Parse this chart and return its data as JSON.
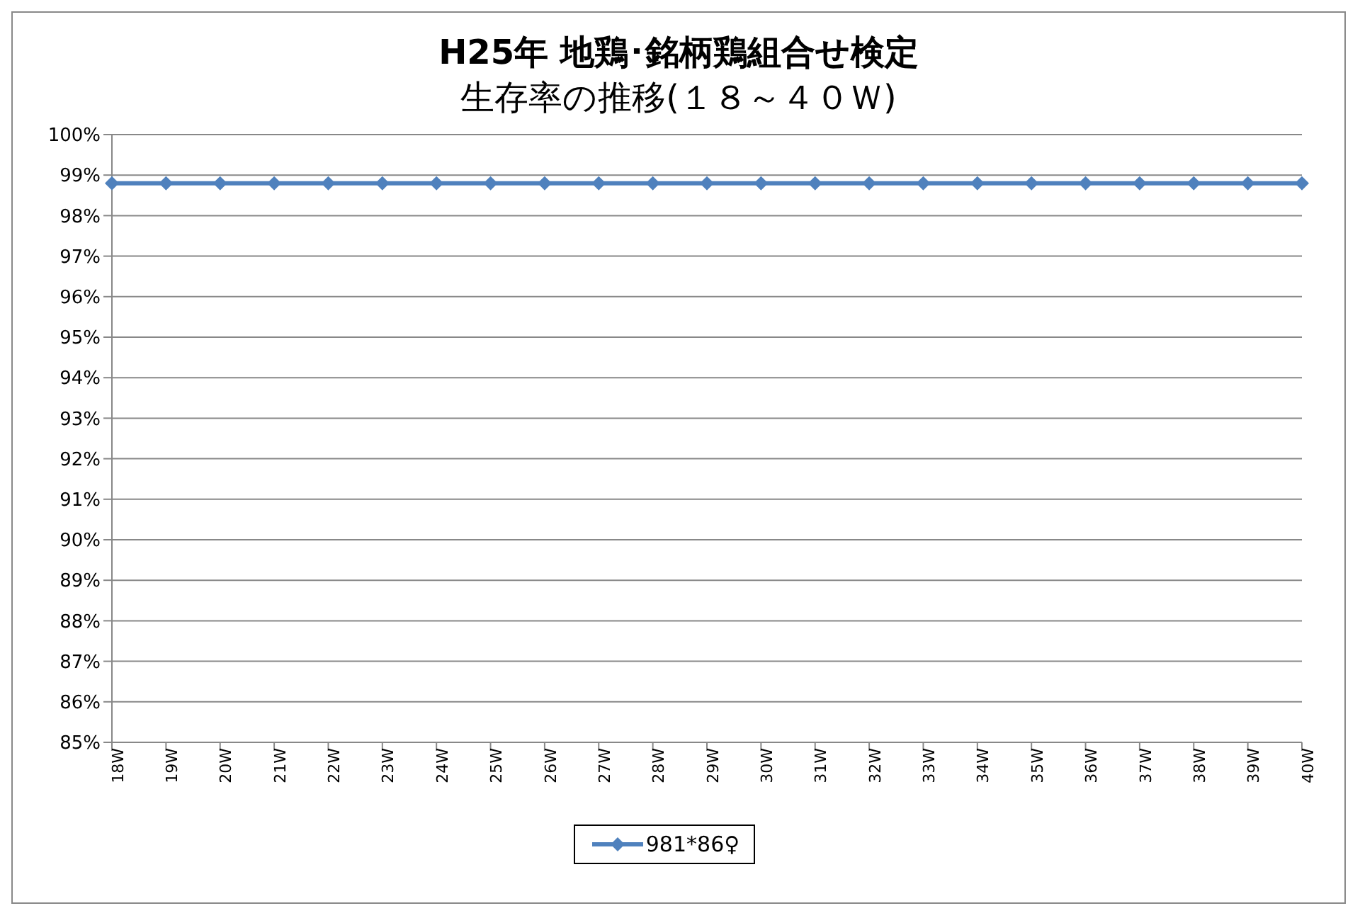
{
  "chart_data": {
    "type": "line",
    "title": "H25年 地鶏･銘柄鶏組合せ検定",
    "subtitle": "生存率の推移(１８～４０Ｗ)",
    "categories": [
      "18W",
      "19W",
      "20W",
      "21W",
      "22W",
      "23W",
      "24W",
      "25W",
      "26W",
      "27W",
      "28W",
      "29W",
      "30W",
      "31W",
      "32W",
      "33W",
      "34W",
      "35W",
      "36W",
      "37W",
      "38W",
      "39W",
      "40W"
    ],
    "series": [
      {
        "name": "981*86♀",
        "color": "#4f81bd",
        "values": [
          98.8,
          98.8,
          98.8,
          98.8,
          98.8,
          98.8,
          98.8,
          98.8,
          98.8,
          98.8,
          98.8,
          98.8,
          98.8,
          98.8,
          98.8,
          98.8,
          98.8,
          98.8,
          98.8,
          98.8,
          98.8,
          98.8,
          98.8
        ]
      }
    ],
    "ylim": [
      85,
      100
    ],
    "yticks": [
      {
        "value": 85,
        "label": "85%"
      },
      {
        "value": 86,
        "label": "86%"
      },
      {
        "value": 87,
        "label": "87%"
      },
      {
        "value": 88,
        "label": "88%"
      },
      {
        "value": 89,
        "label": "89%"
      },
      {
        "value": 90,
        "label": "90%"
      },
      {
        "value": 91,
        "label": "91%"
      },
      {
        "value": 92,
        "label": "92%"
      },
      {
        "value": 93,
        "label": "93%"
      },
      {
        "value": 94,
        "label": "94%"
      },
      {
        "value": 95,
        "label": "95%"
      },
      {
        "value": 96,
        "label": "96%"
      },
      {
        "value": 97,
        "label": "97%"
      },
      {
        "value": 98,
        "label": "98%"
      },
      {
        "value": 99,
        "label": "99%"
      },
      {
        "value": 100,
        "label": "100%"
      }
    ],
    "grid": "y",
    "legend": "bottom",
    "marker": "diamond",
    "line_style": "solid"
  }
}
